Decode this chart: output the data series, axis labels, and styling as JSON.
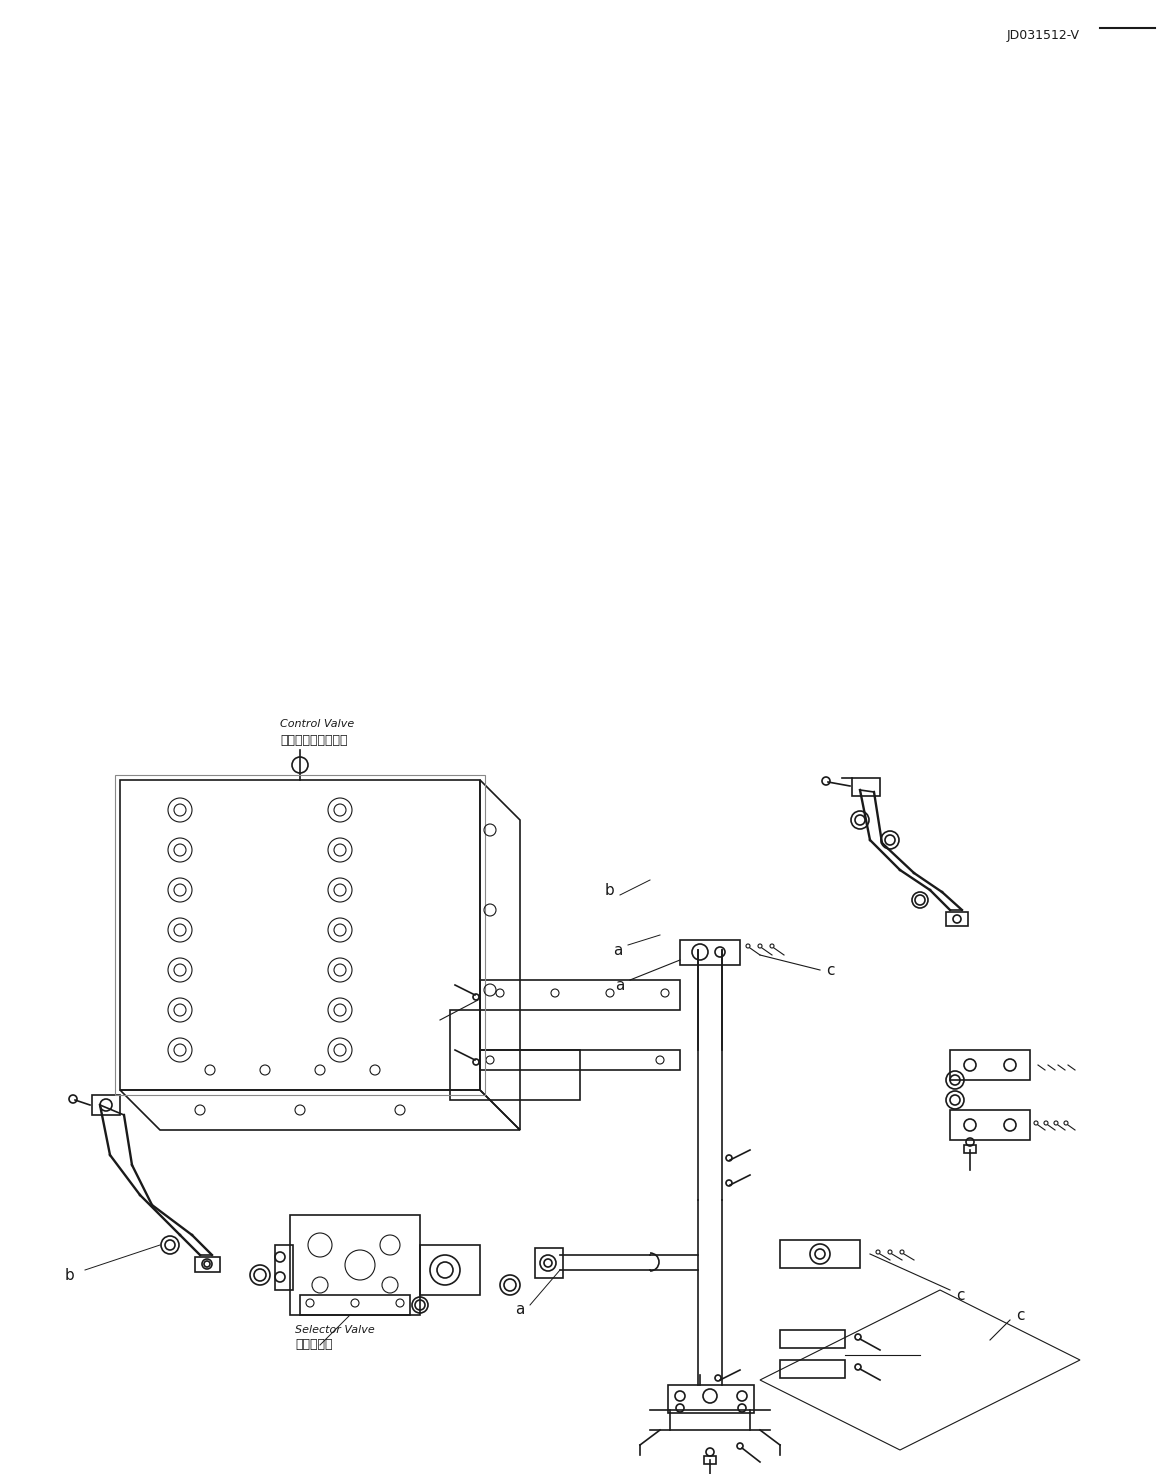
{
  "bg_color": "#ffffff",
  "line_color": "#1a1a1a",
  "fig_width": 11.66,
  "fig_height": 14.74,
  "dpi": 100,
  "part_code": "JD031512-V",
  "label_selector_valve_jp": "切り抛え弁",
  "label_selector_valve_en": "Selector Valve",
  "label_control_valve_jp": "コントロールバルブ",
  "label_control_valve_en": "Control Valve"
}
